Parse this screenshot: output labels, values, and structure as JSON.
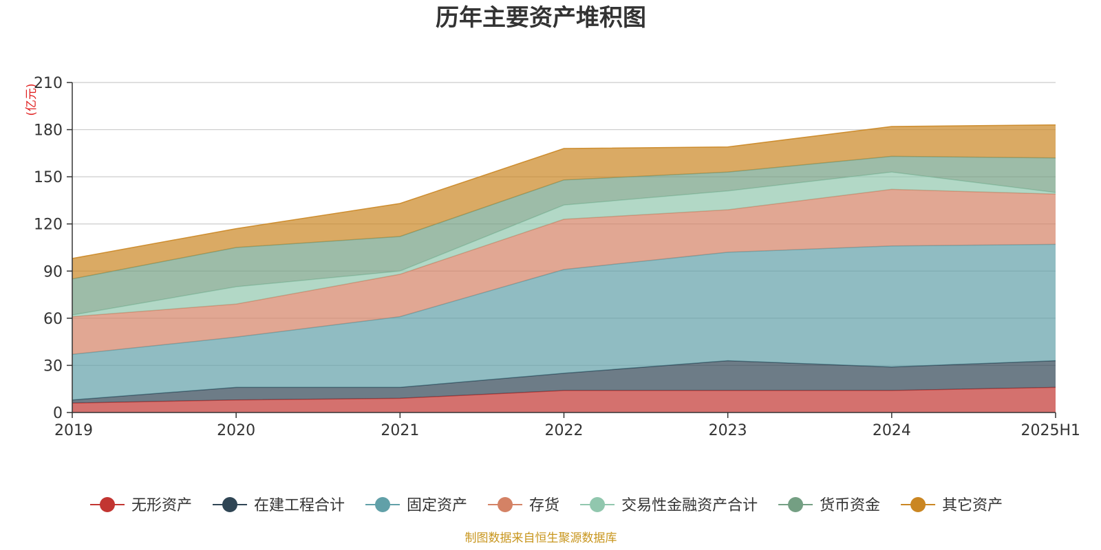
{
  "chart_data": {
    "type": "area",
    "title": "历年主要资产堆积图",
    "ylabel": "(亿元)",
    "categories": [
      "2019",
      "2020",
      "2021",
      "2022",
      "2023",
      "2024",
      "2025H1"
    ],
    "ylim": [
      0,
      210
    ],
    "yticks": [
      0,
      30,
      60,
      90,
      120,
      150,
      180,
      210
    ],
    "stacked": true,
    "grid": true,
    "legend_position": "bottom",
    "series": [
      {
        "name": "无形资产",
        "color": "#c23531",
        "values": [
          6,
          8,
          9,
          14,
          14,
          14,
          16
        ]
      },
      {
        "name": "在建工程合计",
        "color": "#2f4554",
        "values": [
          2,
          8,
          7,
          11,
          19,
          15,
          17
        ]
      },
      {
        "name": "固定资产",
        "color": "#61a0a8",
        "values": [
          29,
          32,
          45,
          66,
          69,
          77,
          74
        ]
      },
      {
        "name": "存货",
        "color": "#d48265",
        "values": [
          24,
          21,
          27,
          32,
          27,
          36,
          32
        ]
      },
      {
        "name": "交易性金融资产合计",
        "color": "#91c7ae",
        "values": [
          1,
          11,
          2,
          9,
          12,
          11,
          1
        ]
      },
      {
        "name": "货币资金",
        "color": "#749f83",
        "values": [
          23,
          25,
          22,
          16,
          12,
          10,
          22
        ]
      },
      {
        "name": "其它资产",
        "color": "#ca8622",
        "values": [
          13,
          12,
          21,
          20,
          16,
          19,
          21
        ]
      }
    ],
    "source": "制图数据来自恒生聚源数据库"
  }
}
